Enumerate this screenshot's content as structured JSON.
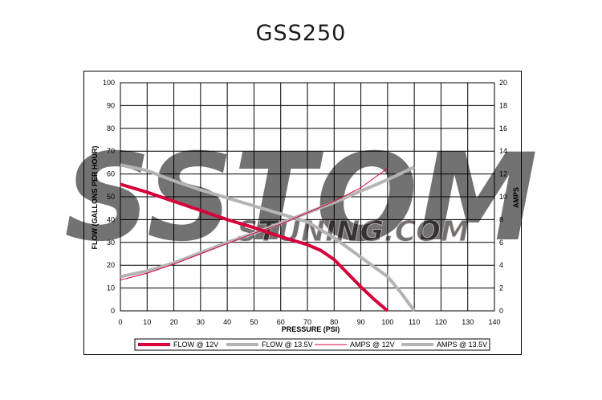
{
  "page": {
    "title": "GSS250"
  },
  "watermark": {
    "brand": "SSTOM",
    "site": "STUNING.COM",
    "color": "#f2d3d3"
  },
  "colors": {
    "series_12v": "#d6003a",
    "series_135v": "#b4b4b4",
    "grid": "#000000"
  },
  "chart_data": {
    "type": "line",
    "xlabel": "PRESSURE (PSI)",
    "ylabel": "FLOW (GALLONS PER HOUR)",
    "y2label": "AMPS",
    "xlim": [
      0,
      140
    ],
    "ylim": [
      0,
      100
    ],
    "y2lim": [
      0,
      20
    ],
    "xticks": [
      0,
      10,
      20,
      30,
      40,
      50,
      60,
      70,
      80,
      90,
      100,
      110,
      120,
      130,
      140
    ],
    "yticks": [
      0,
      10,
      20,
      30,
      40,
      50,
      60,
      70,
      80,
      90,
      100
    ],
    "y2ticks": [
      0,
      2,
      4,
      6,
      8,
      10,
      12,
      14,
      16,
      18,
      20
    ],
    "grid": true,
    "legend_position": "bottom",
    "series": [
      {
        "name": "FLOW @ 12V",
        "axis": "left",
        "style": "thick",
        "color": "#d6003a",
        "x": [
          0,
          10,
          20,
          30,
          40,
          50,
          60,
          70,
          75,
          80,
          85,
          90,
          95,
          100
        ],
        "y": [
          55.5,
          52,
          48,
          44,
          40,
          36.5,
          32.5,
          29,
          26.5,
          22.5,
          16.5,
          10.5,
          5,
          0
        ]
      },
      {
        "name": "FLOW @ 13.5V",
        "axis": "left",
        "style": "thick",
        "color": "#b4b4b4",
        "x": [
          0,
          10,
          20,
          30,
          40,
          50,
          60,
          70,
          80,
          90,
          100,
          105,
          110
        ],
        "y": [
          64,
          61.5,
          57,
          53,
          49.5,
          46,
          42.5,
          39,
          32,
          23.5,
          15,
          8,
          0
        ]
      },
      {
        "name": "AMPS @ 12V",
        "axis": "right",
        "style": "thin",
        "color": "#d6003a",
        "x": [
          0,
          10,
          20,
          30,
          40,
          50,
          60,
          70,
          80,
          90,
          100
        ],
        "y": [
          2.7,
          3.3,
          4.1,
          5,
          5.9,
          6.8,
          7.6,
          8.6,
          9.6,
          10.8,
          12.5
        ]
      },
      {
        "name": "AMPS @ 13.5V",
        "axis": "right",
        "style": "thick",
        "color": "#b4b4b4",
        "x": [
          0,
          10,
          20,
          30,
          40,
          50,
          60,
          70,
          80,
          90,
          100,
          110
        ],
        "y": [
          3,
          3.5,
          4.2,
          5.1,
          6,
          6.8,
          7.7,
          8.6,
          9.5,
          10.5,
          11.5,
          12.6
        ]
      }
    ]
  }
}
